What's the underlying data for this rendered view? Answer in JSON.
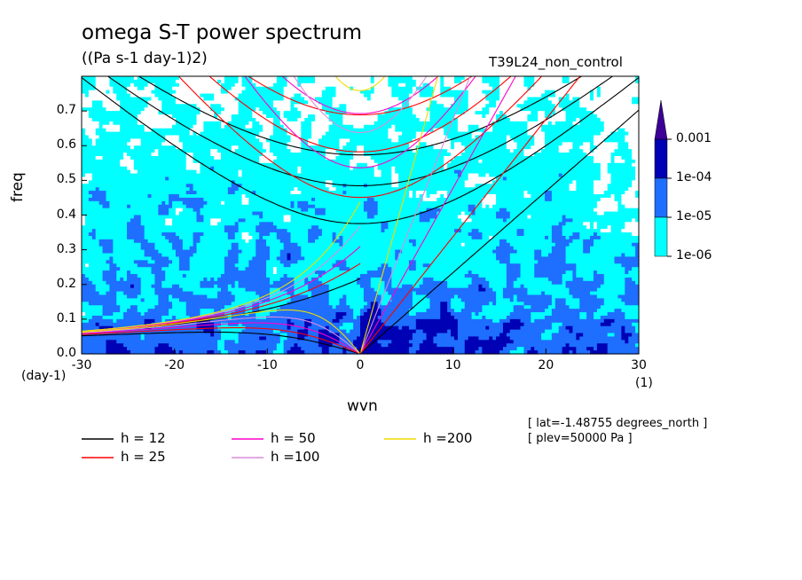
{
  "title": "omega S-T power spectrum",
  "units": "((Pa s-1 day-1)2)",
  "experiment": "T39L24_non_control",
  "meta": [
    "[ lat=-1.48755 degrees_north ]",
    "[ plev=50000 Pa ]"
  ],
  "colors": {
    "level0": "#ffffff",
    "level1": "#00ffff",
    "level2": "#1e6eff",
    "level3": "#0000b4",
    "level4": "#3c0096"
  },
  "chart_data": {
    "type": "heatmap",
    "title": "omega S-T power spectrum",
    "subtitle": "((Pa s-1 day-1)2)",
    "xlabel": "wvn",
    "ylabel": "freq",
    "x_unit": "(1)",
    "y_unit": "(day-1)",
    "xlim": [
      -30,
      30
    ],
    "ylim": [
      0,
      0.8
    ],
    "x_ticks": [
      "-30",
      "-20",
      "-10",
      "0",
      "10",
      "20",
      "30"
    ],
    "y_ticks": [
      "0.0",
      "0.1",
      "0.2",
      "0.3",
      "0.4",
      "0.5",
      "0.6",
      "0.7"
    ],
    "colorbar": {
      "levels": [
        "1e-06",
        "1e-05",
        "1e-04",
        "0.001"
      ],
      "colors": [
        "#00ffff",
        "#1e6eff",
        "#0000b4",
        "#3c0096"
      ],
      "above_max_arrow": true
    },
    "dispersion_curves": [
      {
        "name": "h = 12",
        "color": "#000000"
      },
      {
        "name": "h = 25",
        "color": "#ff0000"
      },
      {
        "name": "h = 50",
        "color": "#ff00c8"
      },
      {
        "name": "h =100",
        "color": "#dc8cdc"
      },
      {
        "name": "h =200",
        "color": "#f0dc00"
      }
    ],
    "grid": false
  }
}
